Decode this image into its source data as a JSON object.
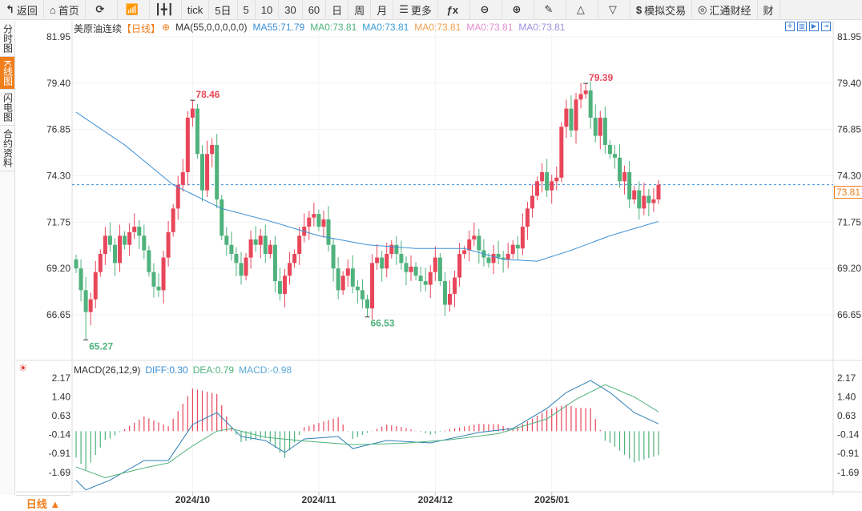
{
  "toolbar": {
    "items": [
      {
        "icon": "back-icon",
        "glyph": "↰",
        "label": "返回"
      },
      {
        "icon": "home-icon",
        "glyph": "⌂",
        "label": "首页"
      },
      {
        "icon": "refresh-icon",
        "glyph": "⟳",
        "label": ""
      },
      {
        "icon": "bar-chart-icon",
        "glyph": "📶",
        "label": ""
      },
      {
        "icon": "candlestick-icon",
        "glyph": "┃╋┃",
        "label": ""
      },
      {
        "icon": "",
        "glyph": "",
        "label": "tick"
      },
      {
        "icon": "",
        "glyph": "",
        "label": "5日"
      },
      {
        "icon": "",
        "glyph": "",
        "label": "5"
      },
      {
        "icon": "",
        "glyph": "",
        "label": "10"
      },
      {
        "icon": "",
        "glyph": "",
        "label": "30"
      },
      {
        "icon": "",
        "glyph": "",
        "label": "60"
      },
      {
        "icon": "",
        "glyph": "",
        "label": "日"
      },
      {
        "icon": "",
        "glyph": "",
        "label": "周"
      },
      {
        "icon": "",
        "glyph": "",
        "label": "月"
      },
      {
        "icon": "menu-icon",
        "glyph": "☰",
        "label": "更多"
      },
      {
        "icon": "function-icon",
        "glyph": "ƒx",
        "label": ""
      },
      {
        "icon": "zoom-out-icon",
        "glyph": "⊖",
        "label": ""
      },
      {
        "icon": "zoom-in-icon",
        "glyph": "⊕",
        "label": ""
      },
      {
        "icon": "pen-icon",
        "glyph": "✎",
        "label": ""
      },
      {
        "icon": "triangle-up-icon",
        "glyph": "△",
        "label": ""
      },
      {
        "icon": "triangle-down-icon",
        "glyph": "▽",
        "label": ""
      },
      {
        "icon": "dollar-icon",
        "glyph": "$",
        "label": "模拟交易"
      },
      {
        "icon": "logo-icon",
        "glyph": "◎",
        "label": "汇通财经"
      },
      {
        "icon": "",
        "glyph": "",
        "label": "财"
      }
    ]
  },
  "sidebar": {
    "tabs": [
      {
        "label": "分时图",
        "active": false
      },
      {
        "label": "K线图",
        "active": true
      },
      {
        "label": "闪电图",
        "active": false
      },
      {
        "label": "合约资料",
        "active": false
      }
    ]
  },
  "legend": {
    "symbol": "美原油连续",
    "period": "【日线】",
    "ma_params": "MA(55,0,0,0,0,0)",
    "ma55": "MA55:71.79",
    "ma_others": [
      "MA0:73.81",
      "MA0:73.81",
      "MA0:73.81",
      "MA0:73.81",
      "MA0:73.81"
    ]
  },
  "macd_legend": {
    "title": "MACD(26,12,9)",
    "diff": "DIFF:0.30",
    "dea": "DEA:0.79",
    "macd": "MACD:-0.98"
  },
  "bottom": {
    "period_label": "日线 ▲"
  },
  "colors": {
    "up": "#e8465a",
    "down": "#4fb27c",
    "ma55": "#3a8fd6",
    "diff": "#2f7fb5",
    "dea": "#4fb27c",
    "accent": "#f07e1c",
    "ma_colors": [
      "#4fb27c",
      "#3a9fd6",
      "#f0a050",
      "#e090d0",
      "#a090e0"
    ]
  },
  "chart_data": [
    {
      "type": "candlestick",
      "title": "美原油连续",
      "yticks": [
        "81.95",
        "79.40",
        "76.85",
        "74.30",
        "71.75",
        "69.20",
        "66.65"
      ],
      "ylim": [
        65.0,
        82.0
      ],
      "xticks": [
        {
          "label": "2024/10",
          "index": 24
        },
        {
          "label": "2024/11",
          "index": 50
        },
        {
          "label": "2024/12",
          "index": 74
        },
        {
          "label": "2025/01",
          "index": 98
        }
      ],
      "last_price": "73.81",
      "closes": [
        69.2,
        68.0,
        66.8,
        67.5,
        69,
        70,
        71,
        70.5,
        69.5,
        71,
        70.5,
        71.2,
        71.5,
        71.0,
        70.2,
        69.0,
        68.2,
        68.0,
        69.8,
        71.2,
        72.5,
        73.8,
        74.5,
        77.5,
        78.0,
        75.5,
        73.5,
        75.5,
        76,
        73,
        71,
        70.5,
        70,
        69.5,
        68.8,
        69.8,
        70.8,
        70.5,
        71,
        70,
        70.5,
        68.5,
        67.8,
        68.8,
        69.5,
        70,
        71,
        71.5,
        72,
        72.2,
        71.5,
        71.9,
        70.5,
        69.2,
        68,
        68.8,
        69.2,
        68.2,
        68.0,
        67.5,
        67.0,
        69.5,
        69.8,
        69.2,
        70,
        70.5,
        70,
        69.5,
        69.0,
        69.3,
        68.8,
        68.5,
        68.3,
        69,
        69.8,
        68.5,
        67.2,
        67.8,
        68.7,
        70.0,
        70.2,
        70.8,
        71.0,
        70.2,
        69.8,
        69.5,
        70.0,
        69.8,
        69.7,
        70,
        70.5,
        70.3,
        71.5,
        72.5,
        73.2,
        74,
        74.5,
        73.5,
        74.0,
        74.2,
        77.0,
        78.0,
        76.8,
        78.5,
        78.8,
        79,
        77.5,
        76.5,
        77.5,
        76.0,
        75.5,
        75.3,
        74.0,
        74.5,
        73.0,
        73.5,
        72.5,
        73.2,
        72.8,
        73.0,
        73.81
      ],
      "annotations": [
        {
          "label": "65.27",
          "index": 2,
          "value": 65.27,
          "kind": "low"
        },
        {
          "label": "78.46",
          "index": 24,
          "value": 78.46,
          "kind": "high"
        },
        {
          "label": "66.53",
          "index": 60,
          "value": 66.53,
          "kind": "low"
        },
        {
          "label": "79.39",
          "index": 105,
          "value": 79.39,
          "kind": "high"
        }
      ],
      "ma55_keypoints": [
        [
          0,
          77.8
        ],
        [
          10,
          76.0
        ],
        [
          20,
          73.8
        ],
        [
          30,
          72.5
        ],
        [
          40,
          71.8
        ],
        [
          50,
          71.0
        ],
        [
          60,
          70.5
        ],
        [
          70,
          70.3
        ],
        [
          80,
          70.3
        ],
        [
          88,
          69.7
        ],
        [
          95,
          69.6
        ],
        [
          102,
          70.2
        ],
        [
          110,
          71.0
        ],
        [
          120,
          71.79
        ]
      ]
    },
    {
      "type": "macd",
      "yticks": [
        "2.17",
        "1.40",
        "0.63",
        "-0.14",
        "-0.91",
        "-1.69"
      ],
      "ylim": [
        -2.6,
        2.4
      ],
      "diff_keypoints": [
        [
          0,
          -2.0
        ],
        [
          2,
          -2.4
        ],
        [
          7,
          -2.0
        ],
        [
          14,
          -1.2
        ],
        [
          19,
          -1.2
        ],
        [
          24,
          0.27
        ],
        [
          29,
          0.76
        ],
        [
          34,
          -0.22
        ],
        [
          39,
          -0.38
        ],
        [
          43,
          -0.87
        ],
        [
          47,
          -0.32
        ],
        [
          54,
          -0.22
        ],
        [
          57,
          -0.71
        ],
        [
          64,
          -0.38
        ],
        [
          73,
          -0.48
        ],
        [
          83,
          -0.05
        ],
        [
          90,
          0.11
        ],
        [
          97,
          0.93
        ],
        [
          101,
          1.58
        ],
        [
          106,
          2.07
        ],
        [
          110,
          1.58
        ],
        [
          115,
          0.76
        ],
        [
          120,
          0.3
        ]
      ],
      "dea_keypoints": [
        [
          0,
          -1.46
        ],
        [
          6,
          -1.9
        ],
        [
          14,
          -1.5
        ],
        [
          19,
          -1.3
        ],
        [
          24,
          -0.6
        ],
        [
          29,
          0.0
        ],
        [
          32,
          0.1
        ],
        [
          39,
          -0.25
        ],
        [
          47,
          -0.4
        ],
        [
          57,
          -0.55
        ],
        [
          67,
          -0.5
        ],
        [
          77,
          -0.35
        ],
        [
          87,
          -0.1
        ],
        [
          97,
          0.5
        ],
        [
          103,
          1.3
        ],
        [
          109,
          1.9
        ],
        [
          115,
          1.4
        ],
        [
          120,
          0.79
        ]
      ]
    }
  ]
}
